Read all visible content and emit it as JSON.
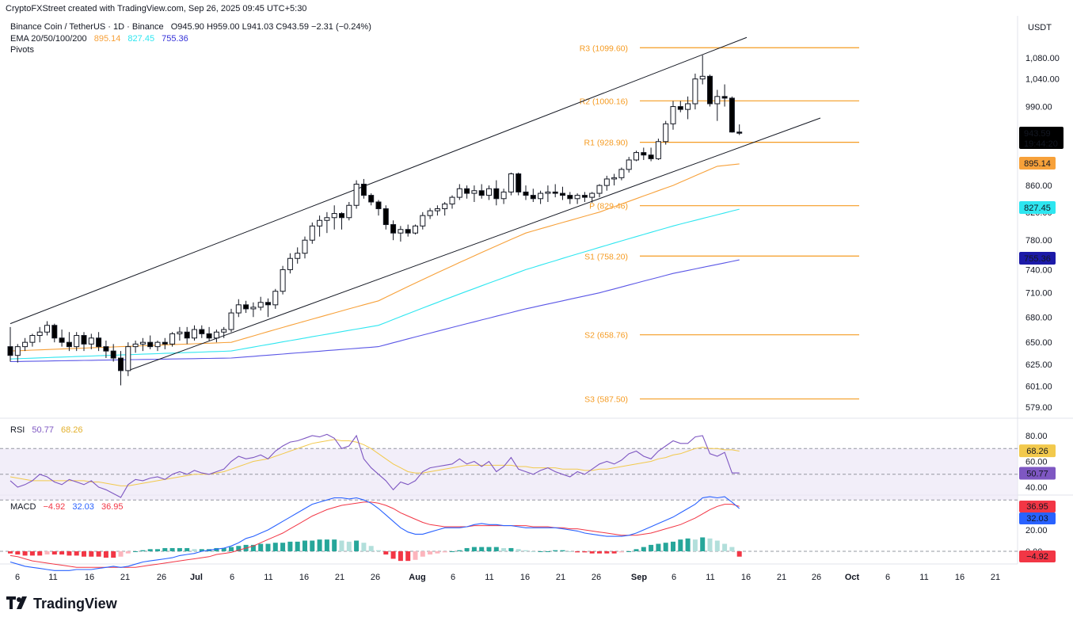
{
  "credit": "CryptoFXStreet created with TradingView.com, Sep 26, 2025 09:45 UTC+5:30",
  "currency": "USDT",
  "header": {
    "symbol": "Binance Coin / TetherUS · 1D · Binance",
    "ohlc": "O945.90  H959.00  L941.03  C943.59  −2.31 (−0.24%)",
    "ema_label": "EMA 20/50/100/200",
    "ema_values": [
      "895.14",
      "827.45",
      "755.36"
    ],
    "pivots_label": "Pivots"
  },
  "colors": {
    "up": "#ffffff",
    "down": "#000000",
    "ema50": "#f7a13a",
    "ema100": "#2ee6f0",
    "ema200": "#5b57e6",
    "pivot": "#f59b22",
    "rsi": "#7e57c2",
    "rsi_ma": "#f2c94c",
    "macd": "#2962ff",
    "signal": "#f23645",
    "hist_up": "#26a69a",
    "hist_up_light": "#b2dfdb",
    "hist_down": "#f23645",
    "hist_down_light": "#fcb5bd"
  },
  "price_axis": [
    "1,080.00",
    "1,040.00",
    "990.00",
    "860.00",
    "820.00",
    "780.00",
    "740.00",
    "710.00",
    "680.00",
    "650.00",
    "625.00",
    "601.00",
    "579.00"
  ],
  "price_badges": {
    "last": "943.59",
    "countdown": "19:44:20",
    "ema50": "895.14",
    "ema100": "827.45",
    "ema200": "755.36"
  },
  "pivots": [
    {
      "label": "R3 (1099.60)",
      "value": 1099.6
    },
    {
      "label": "R2 (1000.16)",
      "value": 1000.16
    },
    {
      "label": "R1 (928.90)",
      "value": 928.9
    },
    {
      "label": "P (829.46)",
      "value": 829.46
    },
    {
      "label": "S1 (758.20)",
      "value": 758.2
    },
    {
      "label": "S2 (658.76)",
      "value": 658.76
    },
    {
      "label": "S3 (587.50)",
      "value": 587.5
    }
  ],
  "x_axis": [
    "6",
    "11",
    "16",
    "21",
    "26",
    "Jul",
    "6",
    "11",
    "16",
    "21",
    "26",
    "Aug",
    "6",
    "11",
    "16",
    "21",
    "26",
    "Sep",
    "6",
    "11",
    "16",
    "21",
    "26",
    "Oct",
    "6",
    "11",
    "16",
    "21"
  ],
  "rsi": {
    "label": "RSI",
    "value": "50.77",
    "ma_value": "68.26",
    "axis": [
      "80.00",
      "60.00",
      "40.00"
    ],
    "badges": [
      "68.26",
      "50.77"
    ]
  },
  "macd": {
    "label": "MACD",
    "hist_value": "−4.92",
    "macd_value": "32.03",
    "signal_value": "36.95",
    "axis": [
      "20.00",
      "0.00"
    ],
    "badges": [
      "36.95",
      "32.03",
      "−4.92"
    ]
  },
  "brand": "TradingView",
  "chart_data": {
    "type": "candlestick",
    "title": "Binance Coin / TetherUS · 1D · Binance",
    "x_start_date": "2025-06-03",
    "candles": [
      [
        645,
        668,
        628,
        635
      ],
      [
        635,
        648,
        627,
        645
      ],
      [
        645,
        655,
        640,
        650
      ],
      [
        650,
        660,
        645,
        658
      ],
      [
        658,
        668,
        650,
        662
      ],
      [
        662,
        675,
        658,
        670
      ],
      [
        670,
        672,
        650,
        655
      ],
      [
        655,
        665,
        645,
        650
      ],
      [
        650,
        662,
        640,
        645
      ],
      [
        645,
        662,
        640,
        658
      ],
      [
        658,
        662,
        640,
        648
      ],
      [
        648,
        660,
        642,
        655
      ],
      [
        655,
        662,
        640,
        645
      ],
      [
        645,
        652,
        632,
        640
      ],
      [
        640,
        648,
        628,
        632
      ],
      [
        632,
        640,
        602,
        618
      ],
      [
        618,
        650,
        612,
        645
      ],
      [
        645,
        652,
        638,
        648
      ],
      [
        648,
        655,
        640,
        650
      ],
      [
        650,
        658,
        642,
        645
      ],
      [
        645,
        652,
        640,
        650
      ],
      [
        650,
        655,
        642,
        648
      ],
      [
        648,
        662,
        645,
        660
      ],
      [
        660,
        668,
        652,
        662
      ],
      [
        662,
        668,
        648,
        655
      ],
      [
        655,
        670,
        652,
        665
      ],
      [
        665,
        670,
        655,
        660
      ],
      [
        660,
        668,
        652,
        655
      ],
      [
        655,
        665,
        650,
        662
      ],
      [
        662,
        668,
        655,
        665
      ],
      [
        665,
        690,
        662,
        685
      ],
      [
        685,
        702,
        680,
        695
      ],
      [
        695,
        700,
        685,
        690
      ],
      [
        690,
        698,
        680,
        692
      ],
      [
        692,
        705,
        688,
        698
      ],
      [
        698,
        703,
        680,
        695
      ],
      [
        695,
        715,
        690,
        712
      ],
      [
        712,
        745,
        708,
        740
      ],
      [
        740,
        762,
        735,
        755
      ],
      [
        755,
        770,
        748,
        762
      ],
      [
        762,
        785,
        755,
        780
      ],
      [
        780,
        805,
        775,
        800
      ],
      [
        800,
        815,
        785,
        808
      ],
      [
        808,
        820,
        790,
        812
      ],
      [
        812,
        830,
        795,
        818
      ],
      [
        818,
        820,
        795,
        812
      ],
      [
        812,
        835,
        808,
        830
      ],
      [
        830,
        868,
        825,
        862
      ],
      [
        862,
        870,
        840,
        845
      ],
      [
        845,
        848,
        830,
        835
      ],
      [
        835,
        838,
        815,
        825
      ],
      [
        825,
        830,
        795,
        802
      ],
      [
        802,
        808,
        780,
        790
      ],
      [
        790,
        800,
        778,
        795
      ],
      [
        795,
        802,
        785,
        790
      ],
      [
        790,
        802,
        788,
        800
      ],
      [
        800,
        820,
        795,
        815
      ],
      [
        815,
        826,
        810,
        822
      ],
      [
        822,
        830,
        815,
        825
      ],
      [
        825,
        835,
        815,
        832
      ],
      [
        832,
        845,
        825,
        842
      ],
      [
        842,
        862,
        838,
        855
      ],
      [
        855,
        860,
        840,
        848
      ],
      [
        848,
        860,
        835,
        852
      ],
      [
        852,
        862,
        840,
        845
      ],
      [
        845,
        860,
        838,
        855
      ],
      [
        855,
        868,
        830,
        840
      ],
      [
        840,
        855,
        832,
        850
      ],
      [
        850,
        880,
        845,
        878
      ],
      [
        878,
        880,
        845,
        850
      ],
      [
        850,
        860,
        838,
        845
      ],
      [
        845,
        855,
        835,
        840
      ],
      [
        840,
        852,
        832,
        848
      ],
      [
        848,
        860,
        835,
        850
      ],
      [
        850,
        862,
        842,
        848
      ],
      [
        848,
        858,
        838,
        845
      ],
      [
        845,
        850,
        832,
        840
      ],
      [
        840,
        848,
        832,
        845
      ],
      [
        845,
        850,
        835,
        842
      ],
      [
        842,
        850,
        834,
        848
      ],
      [
        848,
        862,
        842,
        860
      ],
      [
        860,
        875,
        852,
        870
      ],
      [
        870,
        878,
        860,
        872
      ],
      [
        872,
        888,
        868,
        885
      ],
      [
        885,
        905,
        880,
        900
      ],
      [
        900,
        915,
        898,
        912
      ],
      [
        912,
        920,
        900,
        908
      ],
      [
        908,
        920,
        898,
        902
      ],
      [
        902,
        935,
        900,
        930
      ],
      [
        930,
        965,
        925,
        960
      ],
      [
        960,
        1000,
        950,
        990
      ],
      [
        990,
        1000,
        980,
        985
      ],
      [
        985,
        1008,
        968,
        995
      ],
      [
        995,
        1050,
        985,
        1040
      ],
      [
        1040,
        1085,
        1030,
        1045
      ],
      [
        1045,
        1048,
        990,
        995
      ],
      [
        995,
        1020,
        965,
        1008
      ],
      [
        1008,
        1030,
        990,
        1005
      ],
      [
        1005,
        1008,
        945,
        946
      ],
      [
        946,
        959,
        941,
        944
      ]
    ],
    "ema50": [
      [
        0,
        640
      ],
      [
        30,
        650
      ],
      [
        50,
        700
      ],
      [
        70,
        790
      ],
      [
        80,
        820
      ],
      [
        90,
        860
      ],
      [
        96,
        890
      ],
      [
        100,
        895
      ]
    ],
    "ema100": [
      [
        0,
        631
      ],
      [
        30,
        640
      ],
      [
        50,
        670
      ],
      [
        70,
        740
      ],
      [
        80,
        770
      ],
      [
        90,
        800
      ],
      [
        100,
        827
      ]
    ],
    "ema200": [
      [
        0,
        628
      ],
      [
        30,
        632
      ],
      [
        50,
        645
      ],
      [
        70,
        690
      ],
      [
        80,
        710
      ],
      [
        90,
        735
      ],
      [
        100,
        755
      ]
    ],
    "channel_upper": [
      [
        0,
        672
      ],
      [
        100,
        1120
      ]
    ],
    "channel_lower": [
      [
        16,
        618
      ],
      [
        110,
        970
      ]
    ]
  }
}
